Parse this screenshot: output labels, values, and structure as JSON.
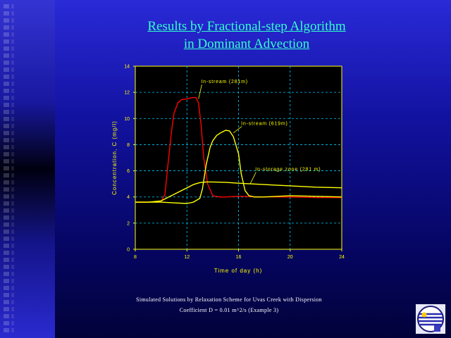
{
  "slide": {
    "title_line1": "Results by Fractional-step Algorithm",
    "title_line2": "in Dominant Advection",
    "caption_line1": "Simulated Solutions by Relaxation Scheme for Uvas Creek with Dispersion",
    "caption_line2": "Coefficient D = 0.01 m^2/s (Example 3)",
    "logo_icon": "university-seal-icon"
  },
  "colors": {
    "title": "#33ffcc",
    "plot_bg": "#000000",
    "axis": "#ffff00",
    "grid": "#00ccff",
    "series_red": "#ff0000",
    "series_yellow": "#ffff00"
  },
  "chart_data": {
    "type": "line",
    "title": "",
    "xlabel": "Time of day (h)",
    "ylabel": "Concentration, C (mg/l)",
    "xlim": [
      8,
      24
    ],
    "ylim": [
      0,
      14
    ],
    "xticks": [
      8,
      12,
      16,
      20,
      24
    ],
    "yticks": [
      0,
      2,
      4,
      6,
      8,
      10,
      12,
      14
    ],
    "grid": true,
    "series": [
      {
        "name": "In-stream (281m)",
        "color": "#ff0000",
        "x": [
          8,
          9,
          10,
          10.3,
          10.5,
          10.8,
          11,
          11.3,
          11.6,
          12,
          12.4,
          12.7,
          12.9,
          13.1,
          13.3,
          13.6,
          14,
          14.5,
          15,
          16,
          18,
          20,
          22,
          24
        ],
        "y": [
          3.6,
          3.6,
          3.65,
          4.2,
          6.2,
          9.0,
          10.4,
          11.2,
          11.45,
          11.5,
          11.6,
          11.6,
          11.2,
          9.5,
          7.0,
          5.0,
          4.1,
          4.0,
          4.0,
          4.05,
          4.0,
          4.0,
          3.95,
          3.95
        ]
      },
      {
        "name": "In-stream (619m)",
        "color": "#ffff00",
        "x": [
          8,
          10,
          11,
          12,
          12.5,
          13,
          13.2,
          13.5,
          13.8,
          14,
          14.3,
          14.6,
          15,
          15.3,
          15.6,
          16,
          16.2,
          16.5,
          16.8,
          17.2,
          18,
          20,
          22,
          24
        ],
        "y": [
          3.6,
          3.6,
          3.55,
          3.5,
          3.6,
          3.9,
          4.6,
          6.5,
          7.8,
          8.3,
          8.7,
          8.9,
          9.1,
          9.05,
          8.6,
          7.3,
          5.8,
          4.5,
          4.1,
          4.0,
          4.0,
          4.1,
          4.05,
          4.0
        ]
      },
      {
        "name": "In-storage zone (281 m)",
        "color": "#ffff00",
        "x": [
          8,
          9,
          10,
          11,
          12,
          12.5,
          13,
          13.5,
          14,
          15,
          16,
          18,
          20,
          22,
          24
        ],
        "y": [
          3.6,
          3.6,
          3.7,
          4.2,
          4.7,
          4.95,
          5.1,
          5.15,
          5.15,
          5.12,
          5.05,
          4.95,
          4.85,
          4.75,
          4.7
        ]
      }
    ],
    "annotations": [
      {
        "text": "In-stream (281m)",
        "series": 0
      },
      {
        "text": "In-stream (619m)",
        "series": 1
      },
      {
        "text": "In-storage zone (281 m)",
        "series": 2
      }
    ]
  }
}
